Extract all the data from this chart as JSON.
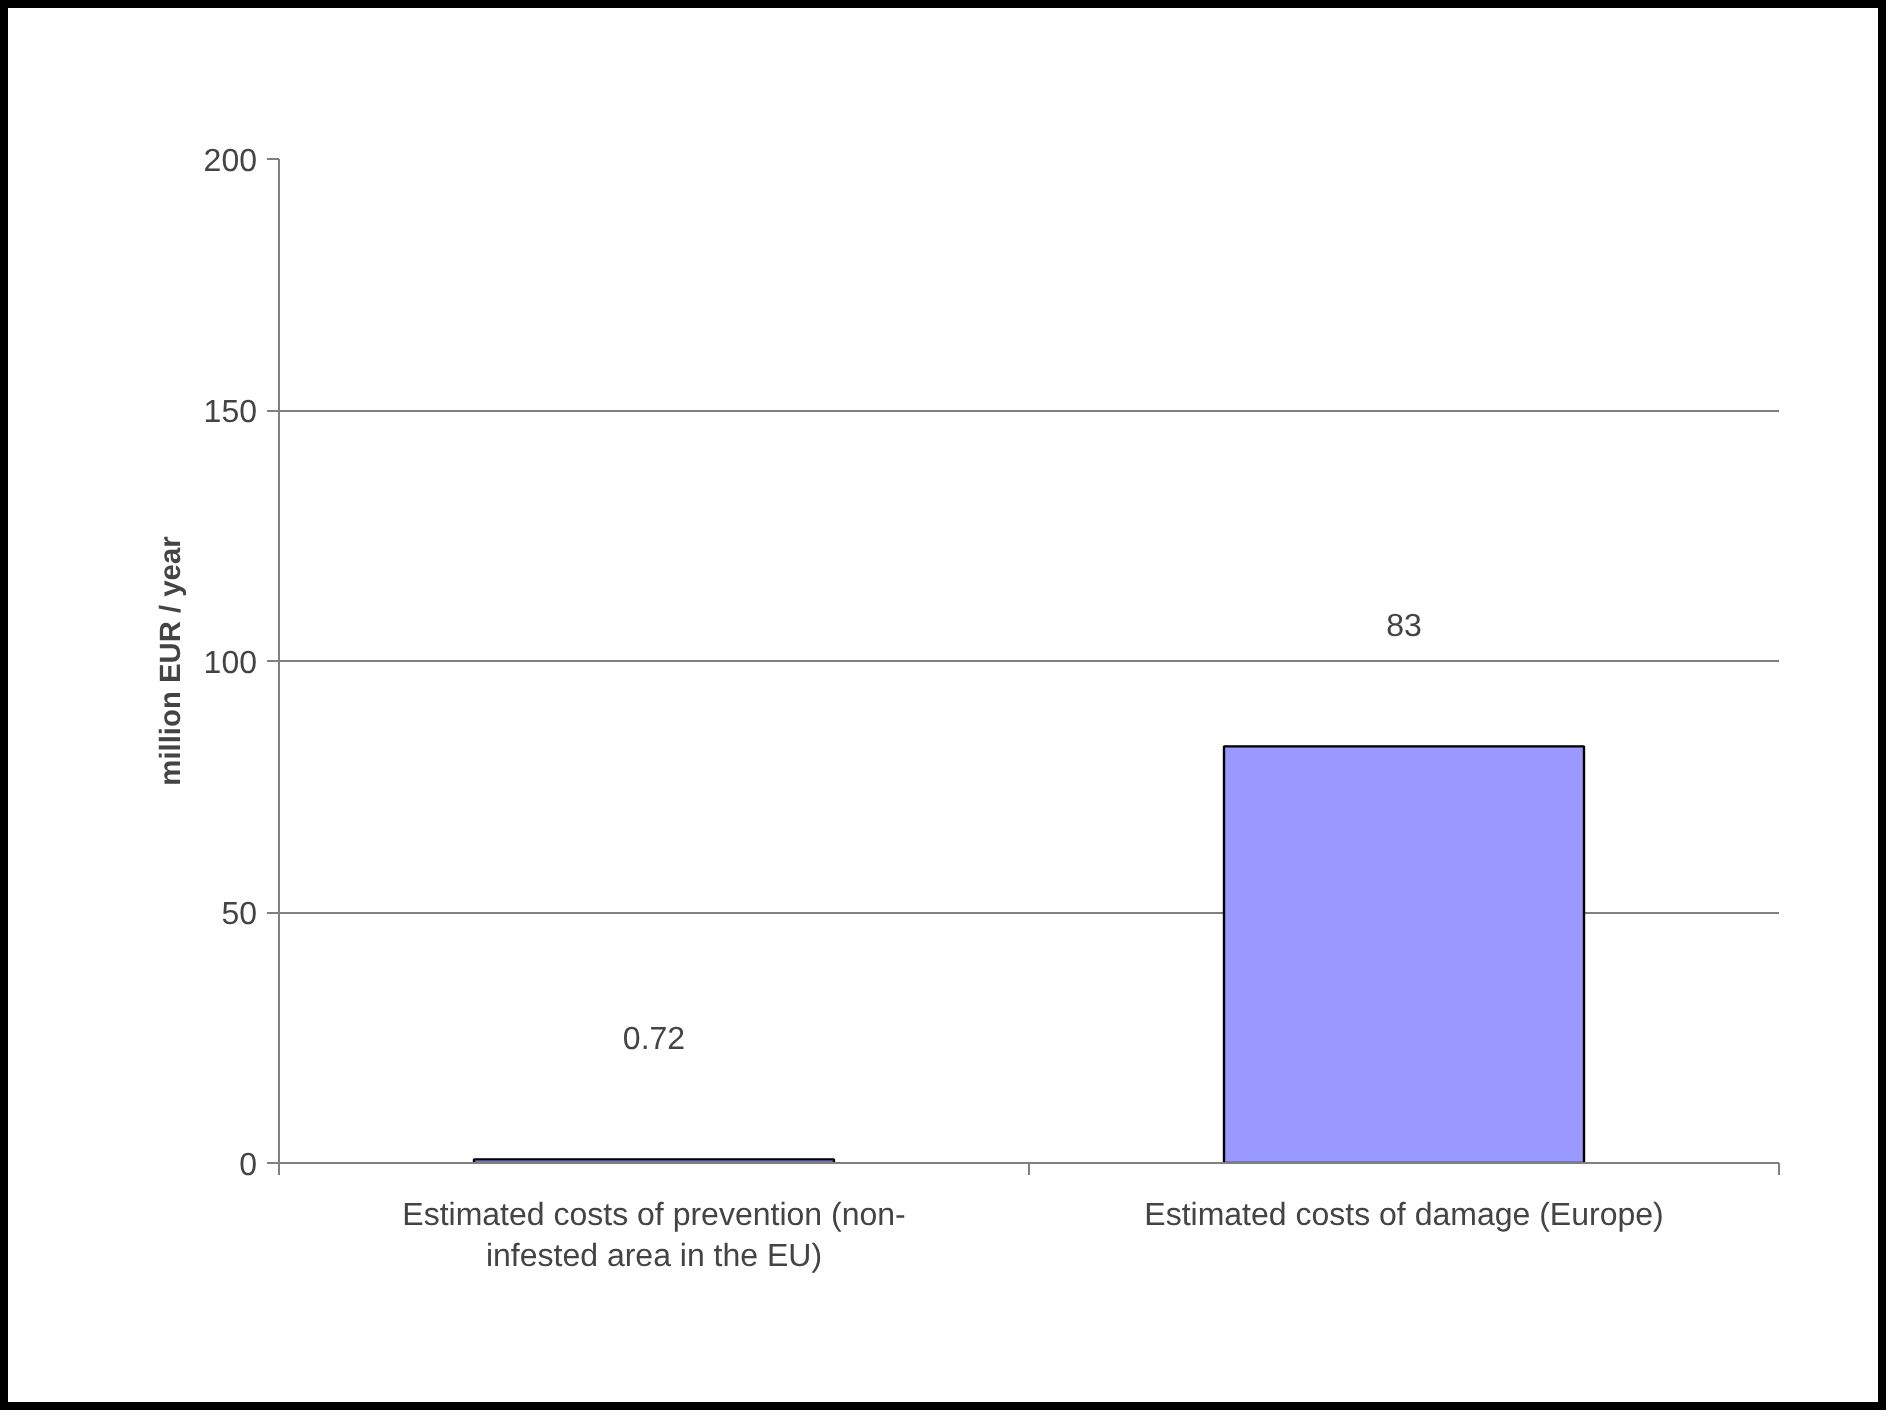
{
  "chart_data": {
    "type": "bar",
    "ylabel": "million EUR / year",
    "categories": [
      "Estimated costs of prevention (non-infested area in the EU)",
      "Estimated costs of damage (Europe)"
    ],
    "values": [
      0.72,
      83
    ],
    "color": "#9999ff",
    "data_labels": true,
    "ylim": [
      0,
      200
    ],
    "yticks": [
      0,
      50,
      100,
      150,
      200
    ],
    "grid": "y"
  }
}
